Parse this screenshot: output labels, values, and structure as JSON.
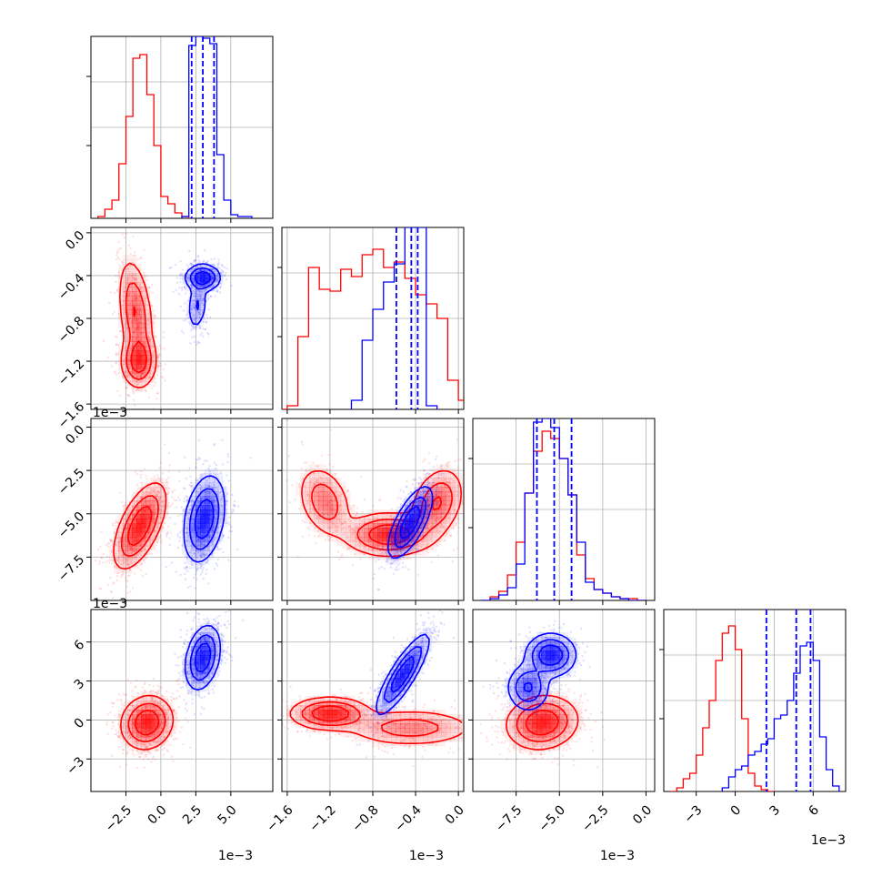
{
  "colors": {
    "series_a": "#ff0000",
    "series_b": "#0000ff",
    "grid": "#b0b0b0"
  },
  "chart_data": {
    "type": "corner",
    "grid": true,
    "parameters": [
      {
        "range": [
          -5.0,
          8.0
        ],
        "ticks": [
          -2.5,
          0.0,
          2.5,
          5.0
        ],
        "tick_labels": [
          "−2.5",
          "0.0",
          "2.5",
          "5.0"
        ],
        "offset_label": "1e−3"
      },
      {
        "range": [
          -1.65,
          0.05
        ],
        "ticks": [
          -1.6,
          -1.2,
          -0.8,
          -0.4,
          0.0
        ],
        "tick_labels": [
          "−1.6",
          "−1.2",
          "−0.8",
          "−0.4",
          "0.0"
        ],
        "offset_label": "1e−3"
      },
      {
        "range": [
          -10.0,
          0.5
        ],
        "ticks": [
          -7.5,
          -5.0,
          -2.5,
          0.0
        ],
        "tick_labels": [
          "−7.5",
          "−5.0",
          "−2.5",
          "0.0"
        ],
        "offset_label": "1e−3"
      },
      {
        "range": [
          -5.5,
          8.5
        ],
        "ticks": [
          -3,
          0,
          3,
          6
        ],
        "tick_labels": [
          "−3",
          "0",
          "3",
          "6"
        ],
        "offset_label": "1e−3"
      }
    ],
    "histograms": [
      {
        "param": 0,
        "series": [
          {
            "name": "",
            "color": "red",
            "edges": [
              -4.5,
              -4.0,
              -3.5,
              -3.0,
              -2.5,
              -2.0,
              -1.5,
              -1.0,
              -0.5,
              0.0,
              0.5,
              1.0,
              1.5,
              2.0
            ],
            "values": [
              0.01,
              0.05,
              0.1,
              0.3,
              0.56,
              0.88,
              0.9,
              0.68,
              0.4,
              0.12,
              0.08,
              0.03,
              0.01
            ]
          },
          {
            "name": "",
            "color": "blue",
            "edges": [
              1.5,
              2.0,
              2.5,
              3.0,
              3.5,
              4.0,
              4.5,
              5.0,
              5.5,
              6.0,
              6.5
            ],
            "values": [
              0.01,
              0.95,
              1.0,
              0.99,
              0.96,
              0.35,
              0.1,
              0.02,
              0.01,
              0.01
            ]
          }
        ],
        "quantiles": [
          2.2,
          3.0,
          3.8
        ]
      },
      {
        "param": 1,
        "series": [
          {
            "name": "",
            "color": "red",
            "edges": [
              -1.7,
              -1.6,
              -1.5,
              -1.4,
              -1.3,
              -1.2,
              -1.1,
              -1.0,
              -0.9,
              -0.8,
              -0.7,
              -0.6,
              -0.5,
              -0.4,
              -0.3,
              -0.2,
              -0.1,
              0.0,
              0.1
            ],
            "values": [
              0.0,
              0.02,
              0.4,
              0.78,
              0.66,
              0.65,
              0.77,
              0.73,
              0.85,
              0.88,
              0.78,
              0.81,
              0.72,
              0.63,
              0.58,
              0.5,
              0.16,
              0.05
            ]
          },
          {
            "name": "",
            "color": "blue",
            "edges": [
              -1.0,
              -0.9,
              -0.8,
              -0.7,
              -0.6,
              -0.5,
              -0.4,
              -0.3,
              -0.2
            ],
            "values": [
              0.05,
              0.38,
              0.55,
              0.7,
              0.8,
              1.0,
              1.0,
              0.02
            ]
          }
        ],
        "quantiles": [
          -0.58,
          -0.44,
          -0.38
        ]
      },
      {
        "param": 2,
        "series": [
          {
            "name": "",
            "color": "red",
            "edges": [
              -9.5,
              -9.0,
              -8.5,
              -8.0,
              -7.5,
              -7.0,
              -6.5,
              -6.0,
              -5.5,
              -5.0,
              -4.5,
              -4.0,
              -3.5,
              -3.0,
              -2.5,
              -2.0,
              -1.5,
              -1.0,
              -0.5,
              0.0
            ],
            "values": [
              0.0,
              0.02,
              0.05,
              0.14,
              0.32,
              0.59,
              0.82,
              0.93,
              0.89,
              0.78,
              0.58,
              0.25,
              0.12,
              0.06,
              0.04,
              0.02,
              0.01,
              0.01,
              0.0
            ]
          },
          {
            "name": "",
            "color": "blue",
            "edges": [
              -9.5,
              -9.0,
              -8.5,
              -8.0,
              -7.5,
              -7.0,
              -6.5,
              -6.0,
              -5.5,
              -5.0,
              -4.5,
              -4.0,
              -3.5,
              -3.0,
              -2.5,
              -2.0,
              -1.5,
              -1.0,
              -0.5,
              0.0
            ],
            "values": [
              0.0,
              0.01,
              0.03,
              0.07,
              0.2,
              0.59,
              0.98,
              1.0,
              0.95,
              0.78,
              0.58,
              0.32,
              0.1,
              0.06,
              0.04,
              0.02,
              0.01,
              0.0,
              0.0
            ]
          }
        ],
        "quantiles": [
          -6.3,
          -5.3,
          -4.3
        ]
      },
      {
        "param": 3,
        "series": [
          {
            "name": "",
            "color": "red",
            "edges": [
              -5.0,
              -4.5,
              -4.0,
              -3.5,
              -3.0,
              -2.5,
              -2.0,
              -1.5,
              -1.0,
              -0.5,
              0.0,
              0.5,
              1.0,
              1.5,
              2.0,
              2.5,
              3.0
            ],
            "values": [
              0.0,
              0.02,
              0.07,
              0.1,
              0.2,
              0.35,
              0.5,
              0.72,
              0.87,
              0.91,
              0.78,
              0.4,
              0.1,
              0.03,
              0.01,
              0.0
            ]
          },
          {
            "name": "",
            "color": "blue",
            "edges": [
              -1.0,
              -0.5,
              0.0,
              0.5,
              1.0,
              1.5,
              2.0,
              2.5,
              3.0,
              3.5,
              4.0,
              4.5,
              5.0,
              5.5,
              6.0,
              6.5,
              7.0,
              7.5,
              8.0
            ],
            "values": [
              0.02,
              0.08,
              0.12,
              0.14,
              0.2,
              0.22,
              0.26,
              0.29,
              0.4,
              0.42,
              0.5,
              0.65,
              0.8,
              0.82,
              0.72,
              0.3,
              0.12,
              0.03
            ]
          }
        ],
        "quantiles": [
          2.4,
          4.7,
          5.8
        ]
      }
    ],
    "pairs": [
      {
        "x": 0,
        "y": 1,
        "series": [
          {
            "name": "",
            "color": "red",
            "components": [
              {
                "mean": [
                  -1.8,
                  -0.75
                ],
                "sd": [
                  0.6,
                  0.25
                ],
                "rho": -0.35,
                "w": 0.6
              },
              {
                "mean": [
                  -1.6,
                  -1.2
                ],
                "sd": [
                  0.6,
                  0.12
                ],
                "rho": 0.0,
                "w": 0.4
              }
            ]
          },
          {
            "name": "",
            "color": "blue",
            "components": [
              {
                "mean": [
                  3.0,
                  -0.42
                ],
                "sd": [
                  0.6,
                  0.06
                ],
                "rho": 0.0,
                "w": 0.7
              },
              {
                "mean": [
                  2.6,
                  -0.68
                ],
                "sd": [
                  0.35,
                  0.12
                ],
                "rho": 0.2,
                "w": 0.3
              }
            ]
          }
        ]
      },
      {
        "x": 0,
        "y": 2,
        "series": [
          {
            "name": "",
            "color": "red",
            "components": [
              {
                "mean": [
                  -1.5,
                  -5.7
                ],
                "sd": [
                  0.9,
                  1.2
                ],
                "rho": 0.6,
                "w": 1.0
              }
            ]
          },
          {
            "name": "",
            "color": "blue",
            "components": [
              {
                "mean": [
                  3.1,
                  -5.3
                ],
                "sd": [
                  0.7,
                  1.2
                ],
                "rho": 0.3,
                "w": 1.0
              }
            ]
          }
        ]
      },
      {
        "x": 0,
        "y": 3,
        "series": [
          {
            "name": "",
            "color": "red",
            "components": [
              {
                "mean": [
                  -1.0,
                  -0.2
                ],
                "sd": [
                  0.9,
                  1.0
                ],
                "rho": 0.1,
                "w": 1.0
              }
            ]
          },
          {
            "name": "",
            "color": "blue",
            "components": [
              {
                "mean": [
                  3.0,
                  4.8
                ],
                "sd": [
                  0.6,
                  1.2
                ],
                "rho": 0.3,
                "w": 1.0
              }
            ]
          }
        ]
      },
      {
        "x": 1,
        "y": 2,
        "series": [
          {
            "name": "",
            "color": "red",
            "components": [
              {
                "mean": [
                  -0.65,
                  -6.2
                ],
                "sd": [
                  0.2,
                  0.6
                ],
                "rho": 0.0,
                "w": 0.45
              },
              {
                "mean": [
                  -1.25,
                  -4.3
                ],
                "sd": [
                  0.12,
                  1.0
                ],
                "rho": -0.3,
                "w": 0.25
              },
              {
                "mean": [
                  -0.2,
                  -4.4
                ],
                "sd": [
                  0.12,
                  1.0
                ],
                "rho": 0.3,
                "w": 0.3
              }
            ]
          },
          {
            "name": "",
            "color": "blue",
            "components": [
              {
                "mean": [
                  -0.45,
                  -5.5
                ],
                "sd": [
                  0.1,
                  1.0
                ],
                "rho": 0.7,
                "w": 1.0
              }
            ]
          }
        ]
      },
      {
        "x": 1,
        "y": 3,
        "series": [
          {
            "name": "",
            "color": "red",
            "components": [
              {
                "mean": [
                  -1.2,
                  0.5
                ],
                "sd": [
                  0.18,
                  0.6
                ],
                "rho": 0.0,
                "w": 0.5
              },
              {
                "mean": [
                  -0.45,
                  -0.6
                ],
                "sd": [
                  0.3,
                  0.7
                ],
                "rho": 0.0,
                "w": 0.5
              }
            ]
          },
          {
            "name": "",
            "color": "blue",
            "components": [
              {
                "mean": [
                  -0.52,
                  3.5
                ],
                "sd": [
                  0.12,
                  1.5
                ],
                "rho": 0.85,
                "w": 1.0
              }
            ]
          }
        ]
      },
      {
        "x": 2,
        "y": 3,
        "series": [
          {
            "name": "",
            "color": "red",
            "components": [
              {
                "mean": [
                  -6.0,
                  -0.2
                ],
                "sd": [
                  1.0,
                  1.0
                ],
                "rho": 0.1,
                "w": 1.0
              }
            ]
          },
          {
            "name": "",
            "color": "blue",
            "components": [
              {
                "mean": [
                  -5.5,
                  5.0
                ],
                "sd": [
                  0.7,
                  0.8
                ],
                "rho": 0.0,
                "w": 0.6
              },
              {
                "mean": [
                  -6.8,
                  2.5
                ],
                "sd": [
                  0.6,
                  0.9
                ],
                "rho": 0.0,
                "w": 0.4
              }
            ]
          }
        ]
      }
    ]
  }
}
